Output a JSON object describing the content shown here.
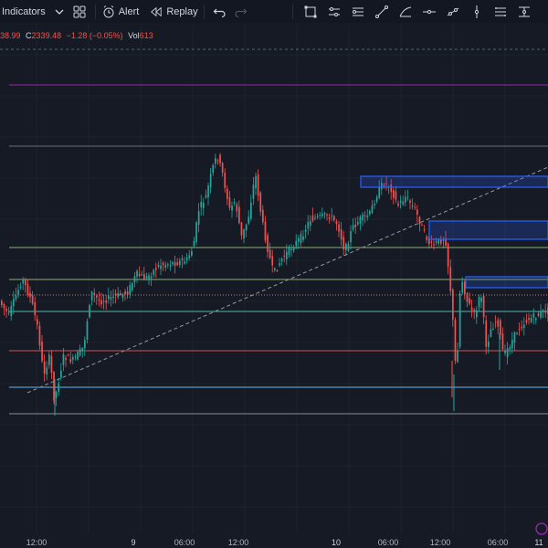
{
  "toolbar": {
    "indicators_label": "Indicators",
    "alert_label": "Alert",
    "replay_label": "Replay",
    "drawing_tools": [
      "select-box-icon",
      "horizontal-ray-icon",
      "parallel-channel-icon",
      "trend-line-icon",
      "fib-retracement-icon",
      "horizontal-line-icon",
      "ray-icon",
      "vertical-line-icon",
      "regression-icon",
      "price-range-icon"
    ]
  },
  "legend": {
    "o_value": "38.99",
    "c_label": "C",
    "c_value": "2339.48",
    "change": "−1.28 (−0.05%)",
    "vol_label": "Vol",
    "vol_value": "613"
  },
  "xaxis": {
    "ticks": [
      "12:00",
      "9",
      "06:00",
      "12:00",
      "10",
      "06:00",
      "12:00",
      "06:00",
      "11"
    ]
  },
  "colors": {
    "background": "#161a25",
    "up": "#26a69a",
    "down": "#ef5350",
    "zone": "#2962ff",
    "purple_line": "#9c27b0"
  },
  "chart_data": {
    "type": "candlestick",
    "description_levels": [
      "purple",
      "gray",
      "olive",
      "olive",
      "teal",
      "red",
      "blue",
      "gray"
    ]
  }
}
